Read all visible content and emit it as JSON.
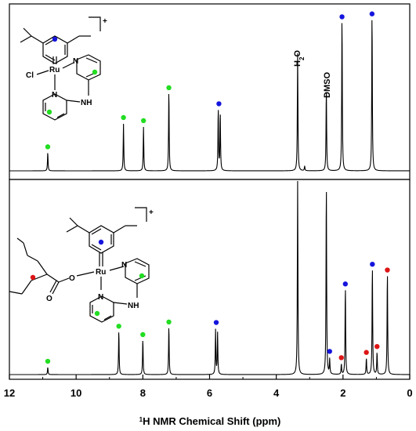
{
  "chart_data": {
    "type": "line",
    "xlabel_sup": "1",
    "xlabel": "H NMR Chemical Shift (ppm)",
    "xlim": [
      12,
      0
    ],
    "x_ticks": [
      "12",
      "10",
      "8",
      "6",
      "4",
      "2",
      "0"
    ],
    "colors": {
      "green": "#22dd22",
      "blue": "#1515dd",
      "red": "#dd1515",
      "line": "#000000"
    },
    "panels": [
      {
        "id": "top",
        "complex_charge": "+",
        "structure_labels": {
          "ru": "Ru",
          "cl": "Cl",
          "n1": "N",
          "n2": "N",
          "nh": "NH"
        },
        "peaks": [
          {
            "x": 10.85,
            "h": 0.12
          },
          {
            "x": 8.58,
            "h": 0.3
          },
          {
            "x": 7.98,
            "h": 0.28
          },
          {
            "x": 7.22,
            "h": 0.52
          },
          {
            "x": 5.74,
            "h": 0.4
          },
          {
            "x": 5.68,
            "h": 0.37
          },
          {
            "x": 3.36,
            "h": 0.75
          },
          {
            "x": 3.15,
            "h": 0.03
          },
          {
            "x": 2.5,
            "h": 0.53
          },
          {
            "x": 2.03,
            "h": 1.0
          },
          {
            "x": 1.13,
            "h": 1.02
          }
        ],
        "markers": [
          {
            "x": 10.85,
            "color": "green"
          },
          {
            "x": 8.58,
            "color": "green"
          },
          {
            "x": 7.98,
            "color": "green"
          },
          {
            "x": 7.22,
            "color": "green"
          },
          {
            "x": 5.72,
            "color": "blue"
          },
          {
            "x": 2.03,
            "color": "blue"
          },
          {
            "x": 1.13,
            "color": "blue"
          }
        ],
        "annotations": [
          {
            "text": "DMSO",
            "x": 2.5
          }
        ],
        "water_label": {
          "main": "H",
          "sub": "2",
          "tail": "O",
          "x": 3.36
        }
      },
      {
        "id": "bottom",
        "complex_charge": "+",
        "structure_labels": {
          "ru": "Ru",
          "o1": "O",
          "o2": "O",
          "n1": "N",
          "n2": "N",
          "nh": "NH"
        },
        "peaks": [
          {
            "x": 10.85,
            "h": 0.05
          },
          {
            "x": 8.72,
            "h": 0.3
          },
          {
            "x": 8.0,
            "h": 0.24
          },
          {
            "x": 7.22,
            "h": 0.33
          },
          {
            "x": 5.82,
            "h": 0.3
          },
          {
            "x": 5.76,
            "h": 0.28
          },
          {
            "x": 3.36,
            "h": 1.3
          },
          {
            "x": 2.5,
            "h": 1.3
          },
          {
            "x": 2.4,
            "h": 0.1
          },
          {
            "x": 2.05,
            "h": 0.07
          },
          {
            "x": 1.93,
            "h": 0.6
          },
          {
            "x": 1.3,
            "h": 0.11
          },
          {
            "x": 1.12,
            "h": 0.74
          },
          {
            "x": 0.98,
            "h": 0.15
          },
          {
            "x": 0.67,
            "h": 0.7
          }
        ],
        "markers": [
          {
            "x": 10.85,
            "color": "green"
          },
          {
            "x": 8.72,
            "color": "green"
          },
          {
            "x": 8.0,
            "color": "green"
          },
          {
            "x": 7.22,
            "color": "green"
          },
          {
            "x": 5.8,
            "color": "blue"
          },
          {
            "x": 2.4,
            "color": "blue"
          },
          {
            "x": 2.05,
            "color": "red"
          },
          {
            "x": 1.93,
            "color": "blue"
          },
          {
            "x": 1.3,
            "color": "red"
          },
          {
            "x": 1.12,
            "color": "blue"
          },
          {
            "x": 0.98,
            "color": "red"
          },
          {
            "x": 0.67,
            "color": "red"
          }
        ]
      }
    ]
  }
}
